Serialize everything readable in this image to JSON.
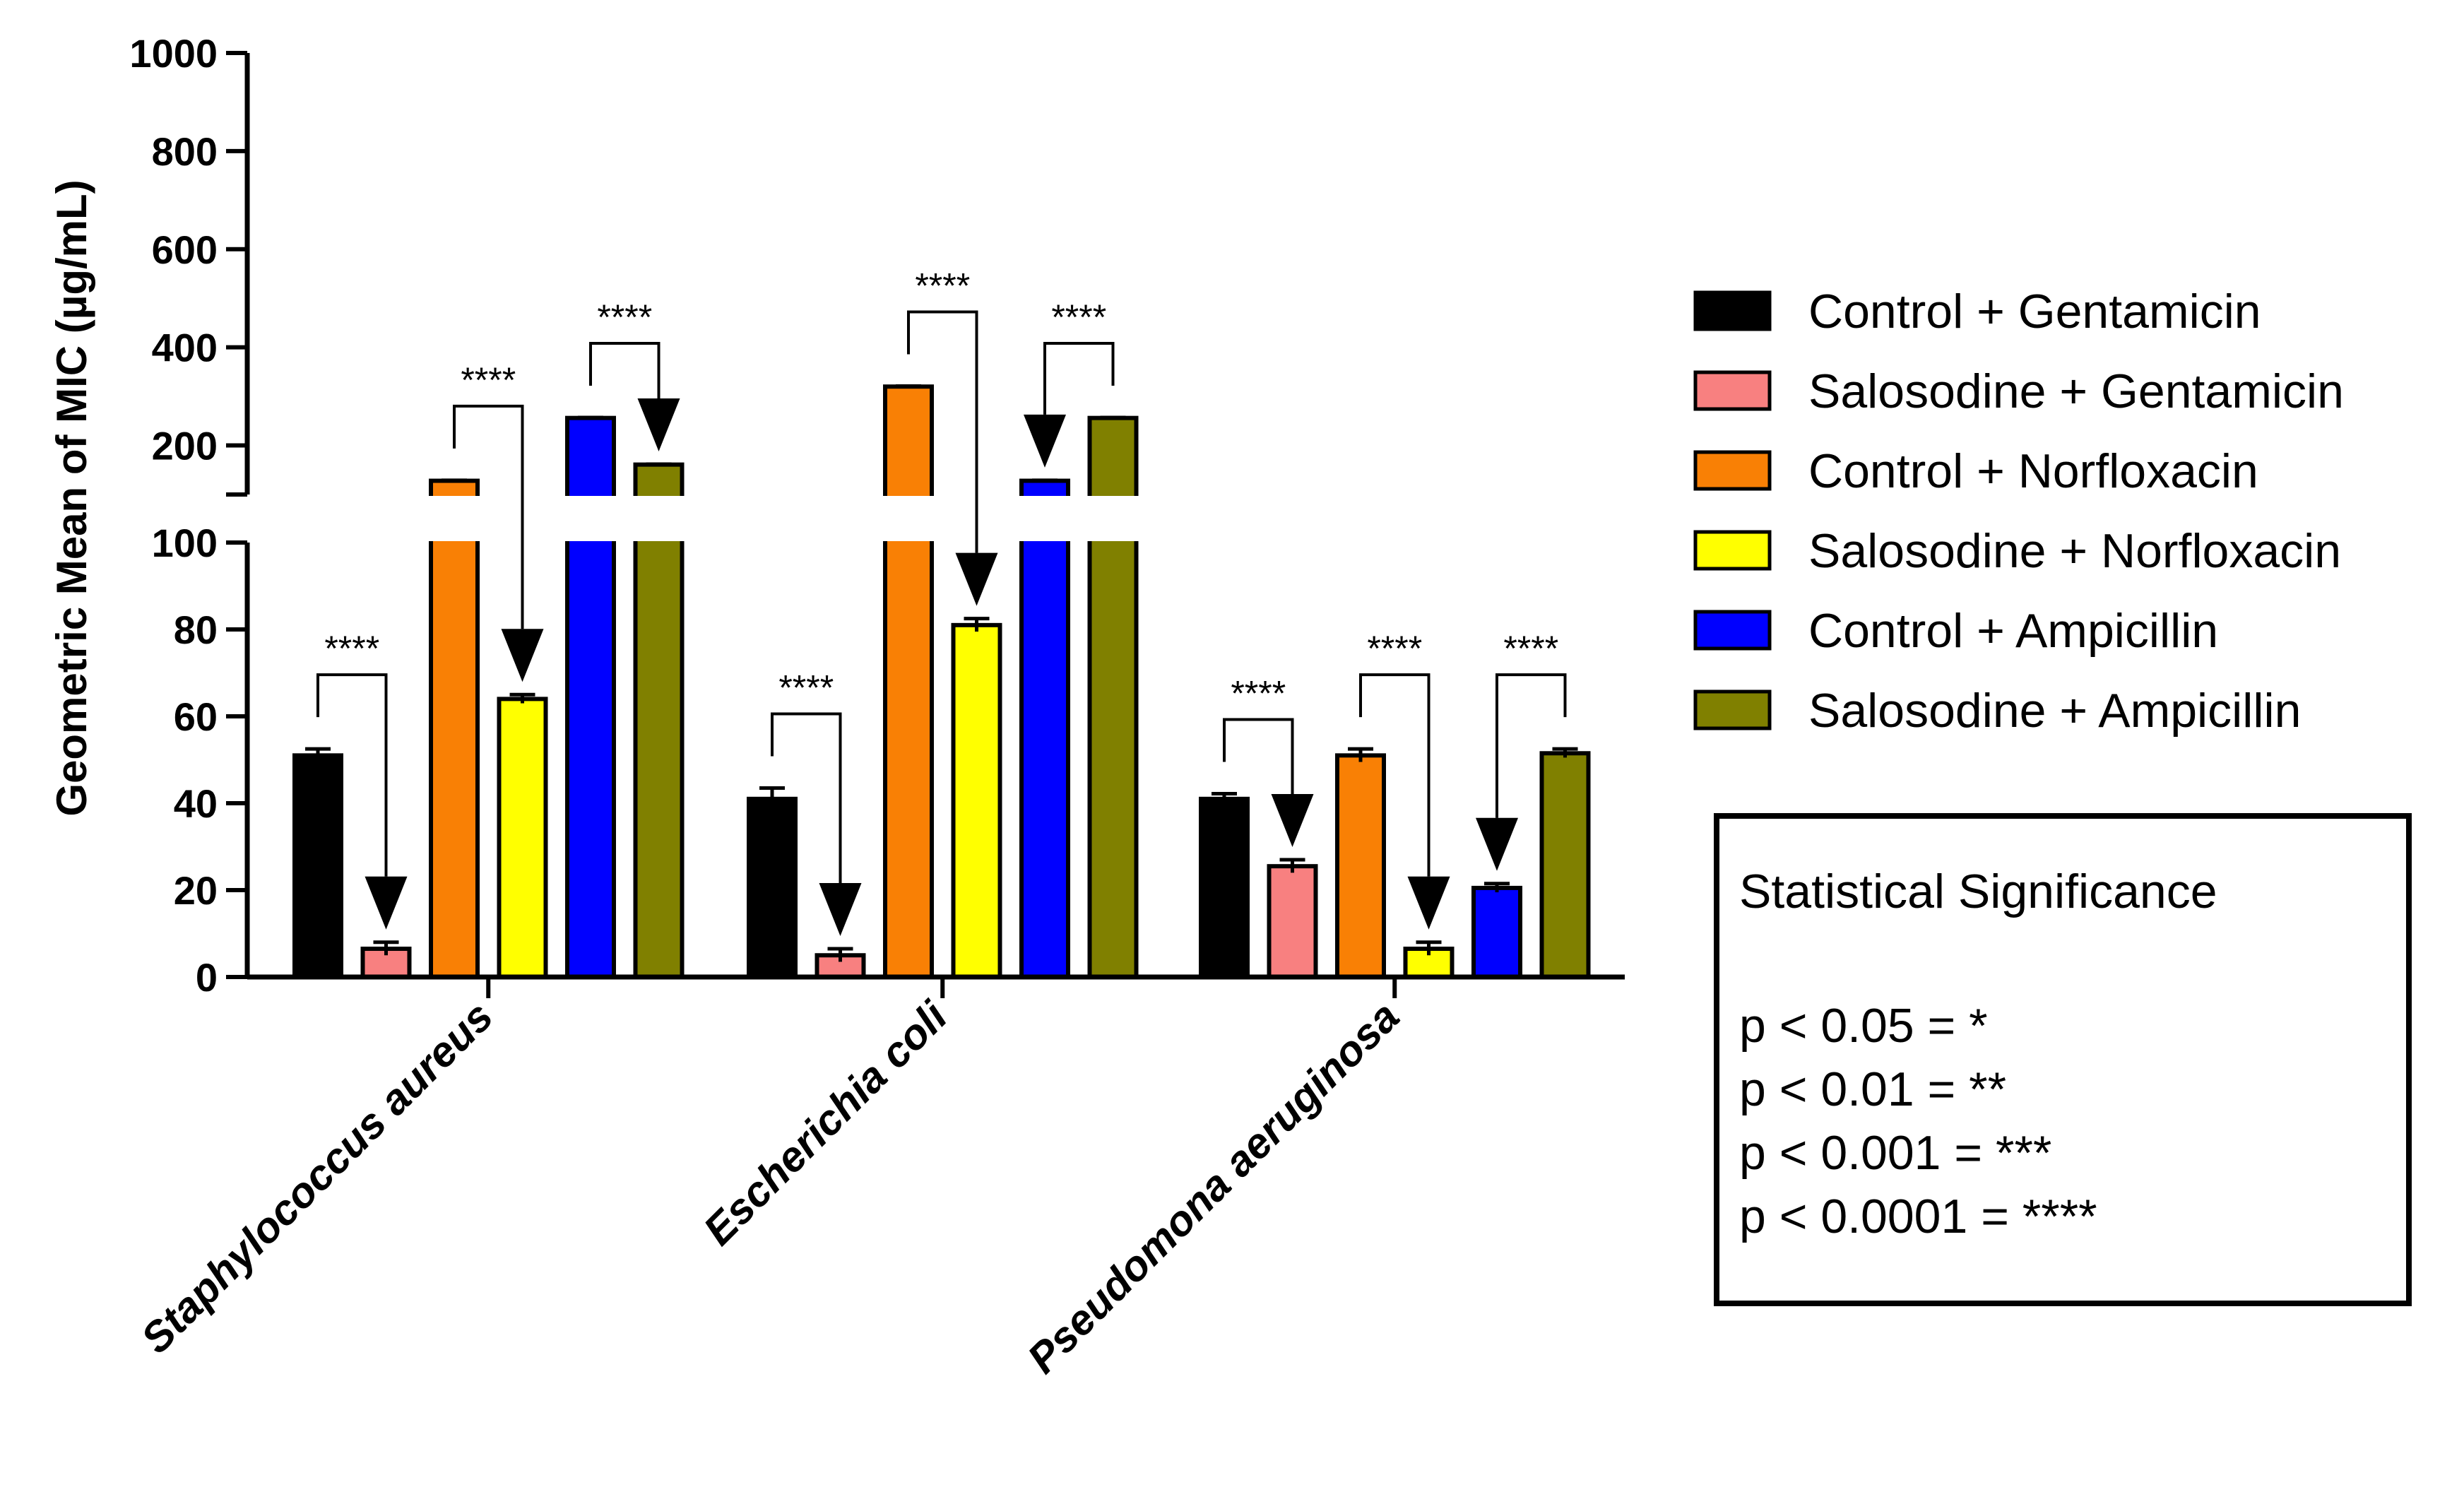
{
  "chart_data": {
    "type": "bar",
    "title": "",
    "xlabel": "",
    "ylabel": "Geometric Mean of MIC (µg/mL)",
    "y_axis_break": {
      "lower": {
        "range": [
          0,
          100
        ],
        "ticks": [
          "0",
          "20",
          "40",
          "60",
          "80",
          "100"
        ]
      },
      "upper": {
        "range": [
          100,
          1000
        ],
        "ticks": [
          "200",
          "400",
          "600",
          "800",
          "1000"
        ]
      }
    },
    "categories": [
      "Staphylococcus aureus",
      "Escherichia coli",
      "Pseudomona aeruginosa"
    ],
    "series": [
      {
        "name": "Control + Gentamicin",
        "color": "#000000",
        "values": [
          51,
          41,
          41
        ],
        "errors": [
          1.5,
          2.5,
          1.2
        ]
      },
      {
        "name": "Salosodine + Gentamicin",
        "color": "#F88080",
        "values": [
          6.5,
          5,
          25.5
        ],
        "errors": [
          1.5,
          1.5,
          1.5
        ]
      },
      {
        "name": "Control + Norfloxacin",
        "color": "#F98005",
        "values": [
          128,
          320,
          51
        ],
        "errors": [
          1,
          1,
          1.5
        ]
      },
      {
        "name": "Salosodine + Norfloxacin",
        "color": "#FFFF00",
        "values": [
          64,
          81,
          6.5
        ],
        "errors": [
          1,
          1.5,
          1.5
        ]
      },
      {
        "name": "Control + Ampicillin",
        "color": "#0000FF",
        "values": [
          256,
          128,
          20.5
        ],
        "errors": [
          1,
          1,
          1
        ]
      },
      {
        "name": "Salosodine + Ampicillin",
        "color": "#808000",
        "values": [
          161,
          256,
          51.5
        ],
        "errors": [
          1,
          1,
          1
        ]
      }
    ],
    "annotations": [
      {
        "category": 0,
        "from": 0,
        "to": 1,
        "label": "****",
        "arrow_to": "to"
      },
      {
        "category": 0,
        "from": 2,
        "to": 3,
        "label": "****",
        "arrow_to": "to"
      },
      {
        "category": 0,
        "from": 4,
        "to": 5,
        "label": "****",
        "arrow_to": "to"
      },
      {
        "category": 1,
        "from": 0,
        "to": 1,
        "label": "****",
        "arrow_to": "to"
      },
      {
        "category": 1,
        "from": 2,
        "to": 3,
        "label": "****",
        "arrow_to": "to"
      },
      {
        "category": 1,
        "from": 4,
        "to": 5,
        "label": "****",
        "arrow_to": "from"
      },
      {
        "category": 2,
        "from": 0,
        "to": 1,
        "label": "****",
        "arrow_to": "to"
      },
      {
        "category": 2,
        "from": 2,
        "to": 3,
        "label": "****",
        "arrow_to": "to"
      },
      {
        "category": 2,
        "from": 4,
        "to": 5,
        "label": "****",
        "arrow_to": "from"
      }
    ],
    "legend_position": "right"
  },
  "significance_box": {
    "title": "Statistical Significance",
    "lines": [
      "p < 0.05 = *",
      "p < 0.01 = **",
      "p < 0.001 = ***",
      "p < 0.0001 = ****"
    ]
  }
}
